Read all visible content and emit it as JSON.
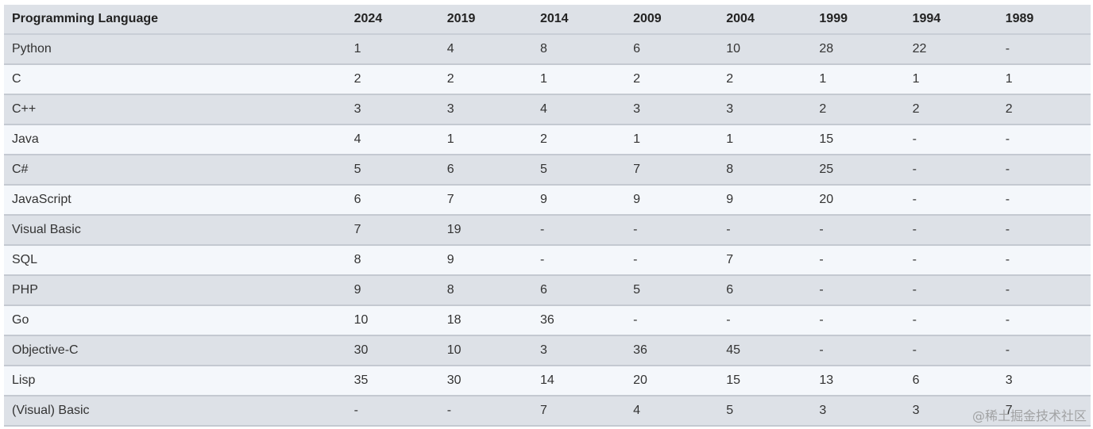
{
  "table": {
    "headers": [
      "Programming Language",
      "2024",
      "2019",
      "2014",
      "2009",
      "2004",
      "1999",
      "1994",
      "1989"
    ],
    "rows": [
      [
        "Python",
        "1",
        "4",
        "8",
        "6",
        "10",
        "28",
        "22",
        "-"
      ],
      [
        "C",
        "2",
        "2",
        "1",
        "2",
        "2",
        "1",
        "1",
        "1"
      ],
      [
        "C++",
        "3",
        "3",
        "4",
        "3",
        "3",
        "2",
        "2",
        "2"
      ],
      [
        "Java",
        "4",
        "1",
        "2",
        "1",
        "1",
        "15",
        "-",
        "-"
      ],
      [
        "C#",
        "5",
        "6",
        "5",
        "7",
        "8",
        "25",
        "-",
        "-"
      ],
      [
        "JavaScript",
        "6",
        "7",
        "9",
        "9",
        "9",
        "20",
        "-",
        "-"
      ],
      [
        "Visual Basic",
        "7",
        "19",
        "-",
        "-",
        "-",
        "-",
        "-",
        "-"
      ],
      [
        "SQL",
        "8",
        "9",
        "-",
        "-",
        "7",
        "-",
        "-",
        "-"
      ],
      [
        "PHP",
        "9",
        "8",
        "6",
        "5",
        "6",
        "-",
        "-",
        "-"
      ],
      [
        "Go",
        "10",
        "18",
        "36",
        "-",
        "-",
        "-",
        "-",
        "-"
      ],
      [
        "Objective-C",
        "30",
        "10",
        "3",
        "36",
        "45",
        "-",
        "-",
        "-"
      ],
      [
        "Lisp",
        "35",
        "30",
        "14",
        "20",
        "15",
        "13",
        "6",
        "3"
      ],
      [
        "(Visual) Basic",
        "-",
        "-",
        "7",
        "4",
        "5",
        "3",
        "3",
        "7"
      ]
    ]
  },
  "watermark": "@稀土掘金技术社区",
  "colors": {
    "header_bg": "#dde1e7",
    "row_odd_bg": "#dde1e7",
    "row_even_bg": "#f4f7fb",
    "border": "#c4c9d1",
    "text": "#333333"
  }
}
